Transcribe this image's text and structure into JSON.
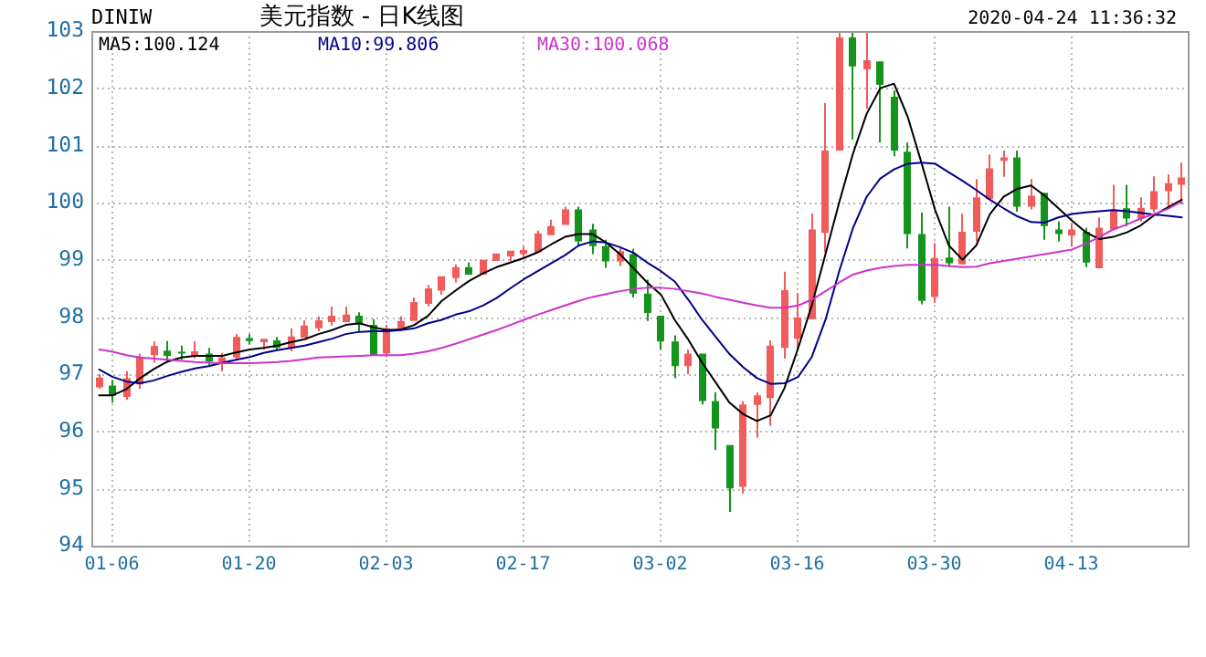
{
  "chart_data": {
    "type": "candlestick",
    "title": "美元指数 - 日K线图",
    "subtitle": "DINIW",
    "annotations": [
      "2020-04-24 11:36:32"
    ],
    "categories": [
      null,
      "01-06",
      null,
      null,
      null,
      null,
      null,
      null,
      null,
      null,
      null,
      "01-20",
      null,
      null,
      null,
      null,
      null,
      null,
      null,
      null,
      null,
      "02-03",
      null,
      null,
      null,
      null,
      null,
      null,
      null,
      null,
      null,
      "02-17",
      null,
      null,
      null,
      null,
      null,
      null,
      null,
      null,
      null,
      "03-02",
      null,
      null,
      null,
      null,
      null,
      null,
      null,
      null,
      null,
      "03-16",
      null,
      null,
      null,
      null,
      null,
      null,
      null,
      null,
      null,
      "03-30",
      null,
      null,
      null,
      null,
      null,
      null,
      null,
      null,
      null,
      "04-13",
      null,
      null,
      null,
      null,
      null,
      null,
      null,
      null
    ],
    "ohlc": [
      [
        96.77,
        97.0,
        96.74,
        96.94
      ],
      [
        96.8,
        96.9,
        96.5,
        96.62
      ],
      [
        96.6,
        97.05,
        96.55,
        96.93
      ],
      [
        96.82,
        97.36,
        96.74,
        97.29
      ],
      [
        97.33,
        97.57,
        97.2,
        97.49
      ],
      [
        97.41,
        97.58,
        97.2,
        97.32
      ],
      [
        97.39,
        97.5,
        97.25,
        97.37
      ],
      [
        97.32,
        97.57,
        97.27,
        97.4
      ],
      [
        97.36,
        97.46,
        97.16,
        97.22
      ],
      [
        97.2,
        97.37,
        97.05,
        97.29
      ],
      [
        97.29,
        97.7,
        97.24,
        97.65
      ],
      [
        97.63,
        97.7,
        97.52,
        97.58
      ],
      [
        97.56,
        97.62,
        97.43,
        97.62
      ],
      [
        97.59,
        97.65,
        97.43,
        97.46
      ],
      [
        97.45,
        97.8,
        97.4,
        97.66
      ],
      [
        97.64,
        97.94,
        97.64,
        97.85
      ],
      [
        97.8,
        98.01,
        97.75,
        97.94
      ],
      [
        97.91,
        98.18,
        97.85,
        98.02
      ],
      [
        97.91,
        98.18,
        97.91,
        98.04
      ],
      [
        98.02,
        98.08,
        97.75,
        97.86
      ],
      [
        97.86,
        97.96,
        97.32,
        97.32
      ],
      [
        97.36,
        97.86,
        97.3,
        97.8
      ],
      [
        97.8,
        98.01,
        97.75,
        97.93
      ],
      [
        97.93,
        98.34,
        97.93,
        98.26
      ],
      [
        98.23,
        98.56,
        98.18,
        98.5
      ],
      [
        98.46,
        98.71,
        98.39,
        98.71
      ],
      [
        98.68,
        98.92,
        98.6,
        98.87
      ],
      [
        98.87,
        98.95,
        98.74,
        98.74
      ],
      [
        98.74,
        99.0,
        98.74,
        99.0
      ],
      [
        98.98,
        99.11,
        98.98,
        99.11
      ],
      [
        99.06,
        99.16,
        98.98,
        99.16
      ],
      [
        99.1,
        99.23,
        99.04,
        99.17
      ],
      [
        99.13,
        99.51,
        99.13,
        99.46
      ],
      [
        99.43,
        99.7,
        99.43,
        99.59
      ],
      [
        99.61,
        99.93,
        99.61,
        99.88
      ],
      [
        99.88,
        99.93,
        99.24,
        99.32
      ],
      [
        99.53,
        99.63,
        99.1,
        99.24
      ],
      [
        99.24,
        99.35,
        98.86,
        98.97
      ],
      [
        98.97,
        99.2,
        98.89,
        99.15
      ],
      [
        99.1,
        99.19,
        98.34,
        98.41
      ],
      [
        98.41,
        98.65,
        97.93,
        98.07
      ],
      [
        98.02,
        98.02,
        97.43,
        97.57
      ],
      [
        97.57,
        97.68,
        96.93,
        97.14
      ],
      [
        97.14,
        97.43,
        97.0,
        97.36
      ],
      [
        97.36,
        97.36,
        96.47,
        96.53
      ],
      [
        96.53,
        96.68,
        95.67,
        96.05
      ],
      [
        95.76,
        95.76,
        94.59,
        95.0
      ],
      [
        95.03,
        96.53,
        94.91,
        96.47
      ],
      [
        96.46,
        96.68,
        95.89,
        96.63
      ],
      [
        96.58,
        97.59,
        96.1,
        97.5
      ],
      [
        97.46,
        98.79,
        97.27,
        98.47
      ],
      [
        97.62,
        98.42,
        97.43,
        97.99
      ],
      [
        97.96,
        99.81,
        97.96,
        99.53
      ],
      [
        99.47,
        101.74,
        99.13,
        100.91
      ],
      [
        100.91,
        102.97,
        100.91,
        102.89
      ],
      [
        102.89,
        102.97,
        101.1,
        102.38
      ],
      [
        102.33,
        102.97,
        101.64,
        102.49
      ],
      [
        102.47,
        102.47,
        101.05,
        102.06
      ],
      [
        101.85,
        101.96,
        100.81,
        100.91
      ],
      [
        100.89,
        101.05,
        99.2,
        99.45
      ],
      [
        99.45,
        99.83,
        98.22,
        98.28
      ],
      [
        98.35,
        99.29,
        98.25,
        99.03
      ],
      [
        99.04,
        99.93,
        98.87,
        98.94
      ],
      [
        98.92,
        99.81,
        98.92,
        99.49
      ],
      [
        99.49,
        100.41,
        99.32,
        100.09
      ],
      [
        100.06,
        100.84,
        100.06,
        100.6
      ],
      [
        100.73,
        100.91,
        100.45,
        100.79
      ],
      [
        100.79,
        100.91,
        99.84,
        99.93
      ],
      [
        99.93,
        100.41,
        99.88,
        100.12
      ],
      [
        100.17,
        100.17,
        99.35,
        99.59
      ],
      [
        99.53,
        99.67,
        99.32,
        99.45
      ],
      [
        99.42,
        99.63,
        99.23,
        99.53
      ],
      [
        99.49,
        99.56,
        98.87,
        98.95
      ],
      [
        98.85,
        99.74,
        98.85,
        99.56
      ],
      [
        99.53,
        100.31,
        99.53,
        99.88
      ],
      [
        99.9,
        100.31,
        99.59,
        99.72
      ],
      [
        99.72,
        100.09,
        99.67,
        99.91
      ],
      [
        99.88,
        100.46,
        99.83,
        100.2
      ],
      [
        100.2,
        100.49,
        99.9,
        100.34
      ],
      [
        100.31,
        100.7,
        99.97,
        100.44
      ]
    ],
    "colors": [
      "#f05b5b",
      "#13951b",
      "#f05b5b",
      "#f05b5b",
      "#f05b5b",
      "#13951b",
      "#13951b",
      "#f05b5b",
      "#13951b",
      "#f05b5b",
      "#f05b5b",
      "#13951b",
      "#f05b5b",
      "#13951b",
      "#f05b5b",
      "#f05b5b",
      "#f05b5b",
      "#f05b5b",
      "#f05b5b",
      "#13951b",
      "#13951b",
      "#f05b5b",
      "#f05b5b",
      "#f05b5b",
      "#f05b5b",
      "#f05b5b",
      "#f05b5b",
      "#13951b",
      "#f05b5b",
      "#f05b5b",
      "#f05b5b",
      "#f05b5b",
      "#f05b5b",
      "#f05b5b",
      "#f05b5b",
      "#13951b",
      "#13951b",
      "#13951b",
      "#f05b5b",
      "#13951b",
      "#13951b",
      "#13951b",
      "#13951b",
      "#f05b5b",
      "#13951b",
      "#13951b",
      "#13951b",
      "#f05b5b",
      "#f05b5b",
      "#f05b5b",
      "#f05b5b",
      "#f05b5b",
      "#f05b5b",
      "#f05b5b",
      "#f05b5b",
      "#13951b",
      "#f05b5b",
      "#13951b",
      "#13951b",
      "#13951b",
      "#13951b",
      "#f05b5b",
      "#13951b",
      "#f05b5b",
      "#f05b5b",
      "#f05b5b",
      "#f05b5b",
      "#13951b",
      "#f05b5b",
      "#13951b",
      "#13951b",
      "#f05b5b",
      "#13951b",
      "#f05b5b",
      "#f05b5b",
      "#13951b",
      "#f05b5b",
      "#f05b5b",
      "#f05b5b",
      "#f05b5b"
    ],
    "series": [
      {
        "name": "MA5:100.124",
        "type": "line",
        "color": "#000000",
        "values": [
          96.63,
          96.63,
          96.74,
          96.93,
          97.09,
          97.22,
          97.29,
          97.32,
          97.32,
          97.32,
          97.38,
          97.43,
          97.46,
          97.5,
          97.56,
          97.61,
          97.7,
          97.77,
          97.86,
          97.89,
          97.82,
          97.77,
          97.78,
          97.86,
          98.02,
          98.28,
          98.46,
          98.63,
          98.76,
          98.87,
          98.95,
          99.03,
          99.13,
          99.27,
          99.4,
          99.45,
          99.45,
          99.3,
          99.1,
          98.85,
          98.6,
          98.39,
          97.95,
          97.6,
          97.2,
          96.85,
          96.5,
          96.3,
          96.18,
          96.28,
          96.75,
          97.45,
          98.2,
          99.1,
          100.0,
          100.85,
          101.55,
          102.0,
          102.08,
          101.5,
          100.7,
          99.87,
          99.25,
          99.0,
          99.25,
          99.8,
          100.1,
          100.24,
          100.3,
          100.12,
          99.9,
          99.68,
          99.48,
          99.36,
          99.4,
          99.48,
          99.6,
          99.78,
          99.92,
          100.05
        ]
      },
      {
        "name": "MA10:99.806",
        "type": "line",
        "color": "#00008b",
        "values": [
          97.08,
          96.95,
          96.87,
          96.84,
          96.89,
          96.97,
          97.04,
          97.1,
          97.14,
          97.2,
          97.25,
          97.3,
          97.37,
          97.42,
          97.46,
          97.5,
          97.56,
          97.62,
          97.7,
          97.74,
          97.75,
          97.75,
          97.77,
          97.8,
          97.89,
          97.95,
          98.04,
          98.1,
          98.2,
          98.33,
          98.5,
          98.66,
          98.8,
          98.94,
          99.08,
          99.25,
          99.32,
          99.3,
          99.22,
          99.12,
          98.95,
          98.8,
          98.62,
          98.3,
          97.95,
          97.65,
          97.35,
          97.12,
          96.93,
          96.83,
          96.84,
          96.95,
          97.3,
          97.95,
          98.8,
          99.55,
          100.1,
          100.42,
          100.58,
          100.68,
          100.7,
          100.68,
          100.53,
          100.38,
          100.22,
          100.05,
          99.9,
          99.76,
          99.66,
          99.65,
          99.74,
          99.8,
          99.83,
          99.85,
          99.87,
          99.85,
          99.82,
          99.79,
          99.77,
          99.74
        ]
      },
      {
        "name": "MA30:100.068",
        "type": "line",
        "color": "#cc33cc",
        "values": [
          97.43,
          97.39,
          97.33,
          97.29,
          97.27,
          97.25,
          97.23,
          97.21,
          97.2,
          97.19,
          97.19,
          97.19,
          97.2,
          97.21,
          97.23,
          97.26,
          97.29,
          97.3,
          97.31,
          97.32,
          97.33,
          97.33,
          97.33,
          97.36,
          97.4,
          97.46,
          97.53,
          97.61,
          97.69,
          97.77,
          97.86,
          97.95,
          98.04,
          98.12,
          98.2,
          98.28,
          98.35,
          98.4,
          98.45,
          98.49,
          98.51,
          98.51,
          98.49,
          98.45,
          98.41,
          98.35,
          98.3,
          98.25,
          98.2,
          98.16,
          98.16,
          98.2,
          98.3,
          98.45,
          98.6,
          98.74,
          98.81,
          98.86,
          98.89,
          98.91,
          98.91,
          98.91,
          98.89,
          98.87,
          98.88,
          98.94,
          98.98,
          99.02,
          99.06,
          99.1,
          99.14,
          99.18,
          99.28,
          99.4,
          99.53,
          99.62,
          99.72,
          99.8,
          99.89,
          100.02
        ]
      }
    ],
    "ylim": [
      94,
      103
    ],
    "yticks": [
      94,
      95,
      96,
      97,
      98,
      99,
      100,
      101,
      102,
      103
    ],
    "grid": true,
    "legend": "top left"
  }
}
